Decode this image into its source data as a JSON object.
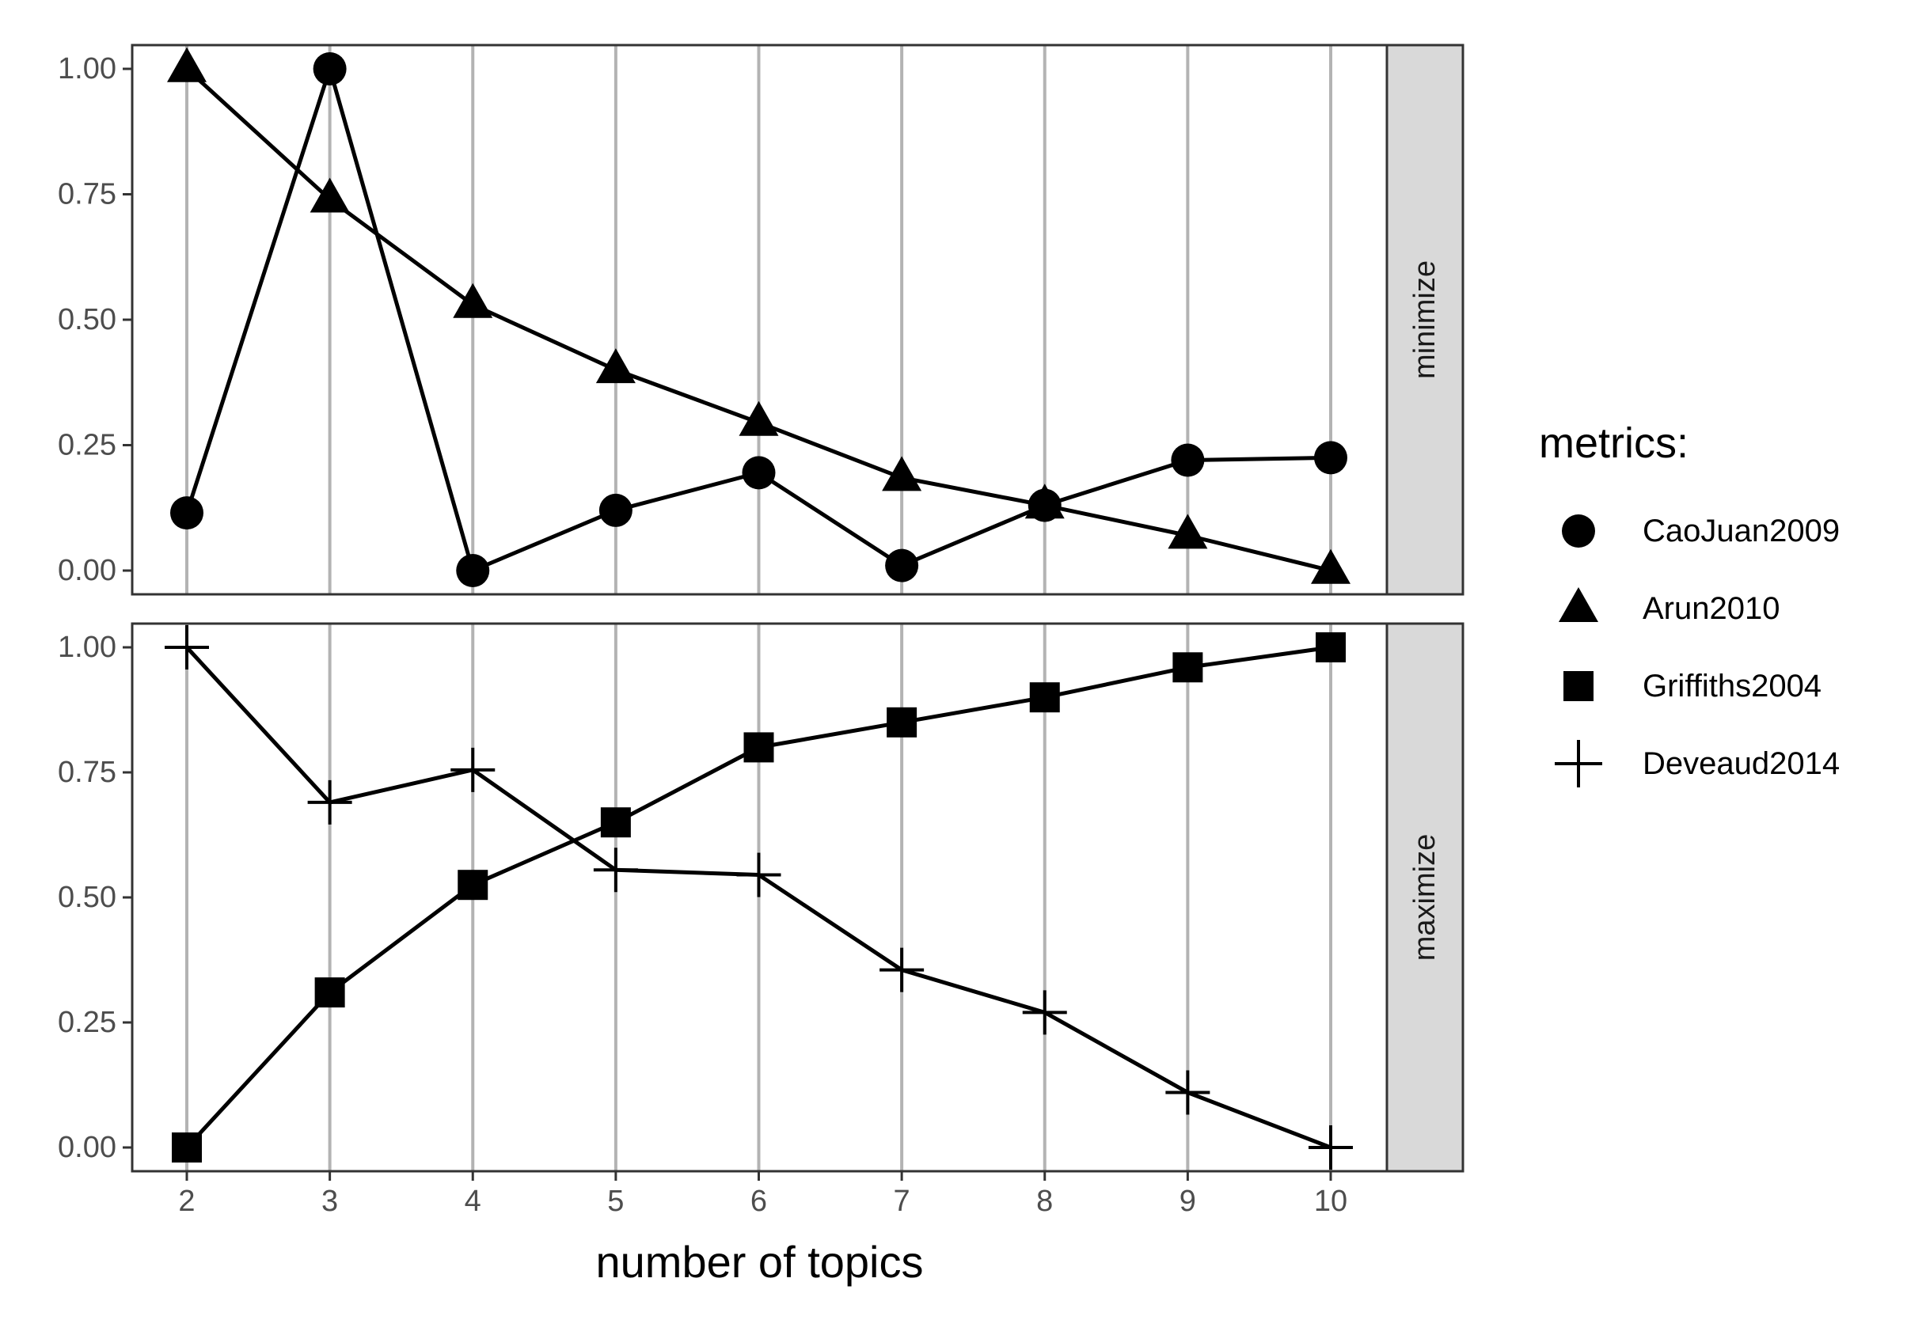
{
  "chart_data": {
    "type": "line",
    "xlabel": "number of topics",
    "x": [
      2,
      3,
      4,
      5,
      6,
      7,
      8,
      9,
      10
    ],
    "xticks": [
      "2",
      "3",
      "4",
      "5",
      "6",
      "7",
      "8",
      "9",
      "10"
    ],
    "yticks": [
      "0.00",
      "0.25",
      "0.50",
      "0.75",
      "1.00"
    ],
    "ylim": [
      0,
      1
    ],
    "grid": "vertical only",
    "legend": {
      "title": "metrics:",
      "placement": "right",
      "entries": [
        "CaoJuan2009",
        "Arun2010",
        "Griffiths2004",
        "Deveaud2014"
      ]
    },
    "panels": [
      {
        "strip": "minimize",
        "series": [
          {
            "name": "CaoJuan2009",
            "marker": "circle",
            "values": [
              0.115,
              1.0,
              0.0,
              0.12,
              0.195,
              0.01,
              0.13,
              0.22,
              0.225
            ]
          },
          {
            "name": "Arun2010",
            "marker": "triangle",
            "values": [
              1.0,
              0.74,
              0.53,
              0.4,
              0.295,
              0.185,
              0.13,
              0.07,
              0.0
            ]
          }
        ]
      },
      {
        "strip": "maximize",
        "series": [
          {
            "name": "Griffiths2004",
            "marker": "square",
            "values": [
              0.0,
              0.31,
              0.525,
              0.65,
              0.8,
              0.85,
              0.9,
              0.96,
              1.0
            ]
          },
          {
            "name": "Deveaud2014",
            "marker": "plus",
            "values": [
              1.0,
              0.69,
              0.755,
              0.555,
              0.545,
              0.355,
              0.27,
              0.11,
              0.0
            ]
          }
        ]
      }
    ],
    "colors": {
      "line": "#000000",
      "grid": "#b3b3b3",
      "strip_fill": "#d9d9d9",
      "panel_border": "#333333",
      "tick_text": "#4d4d4d"
    }
  }
}
